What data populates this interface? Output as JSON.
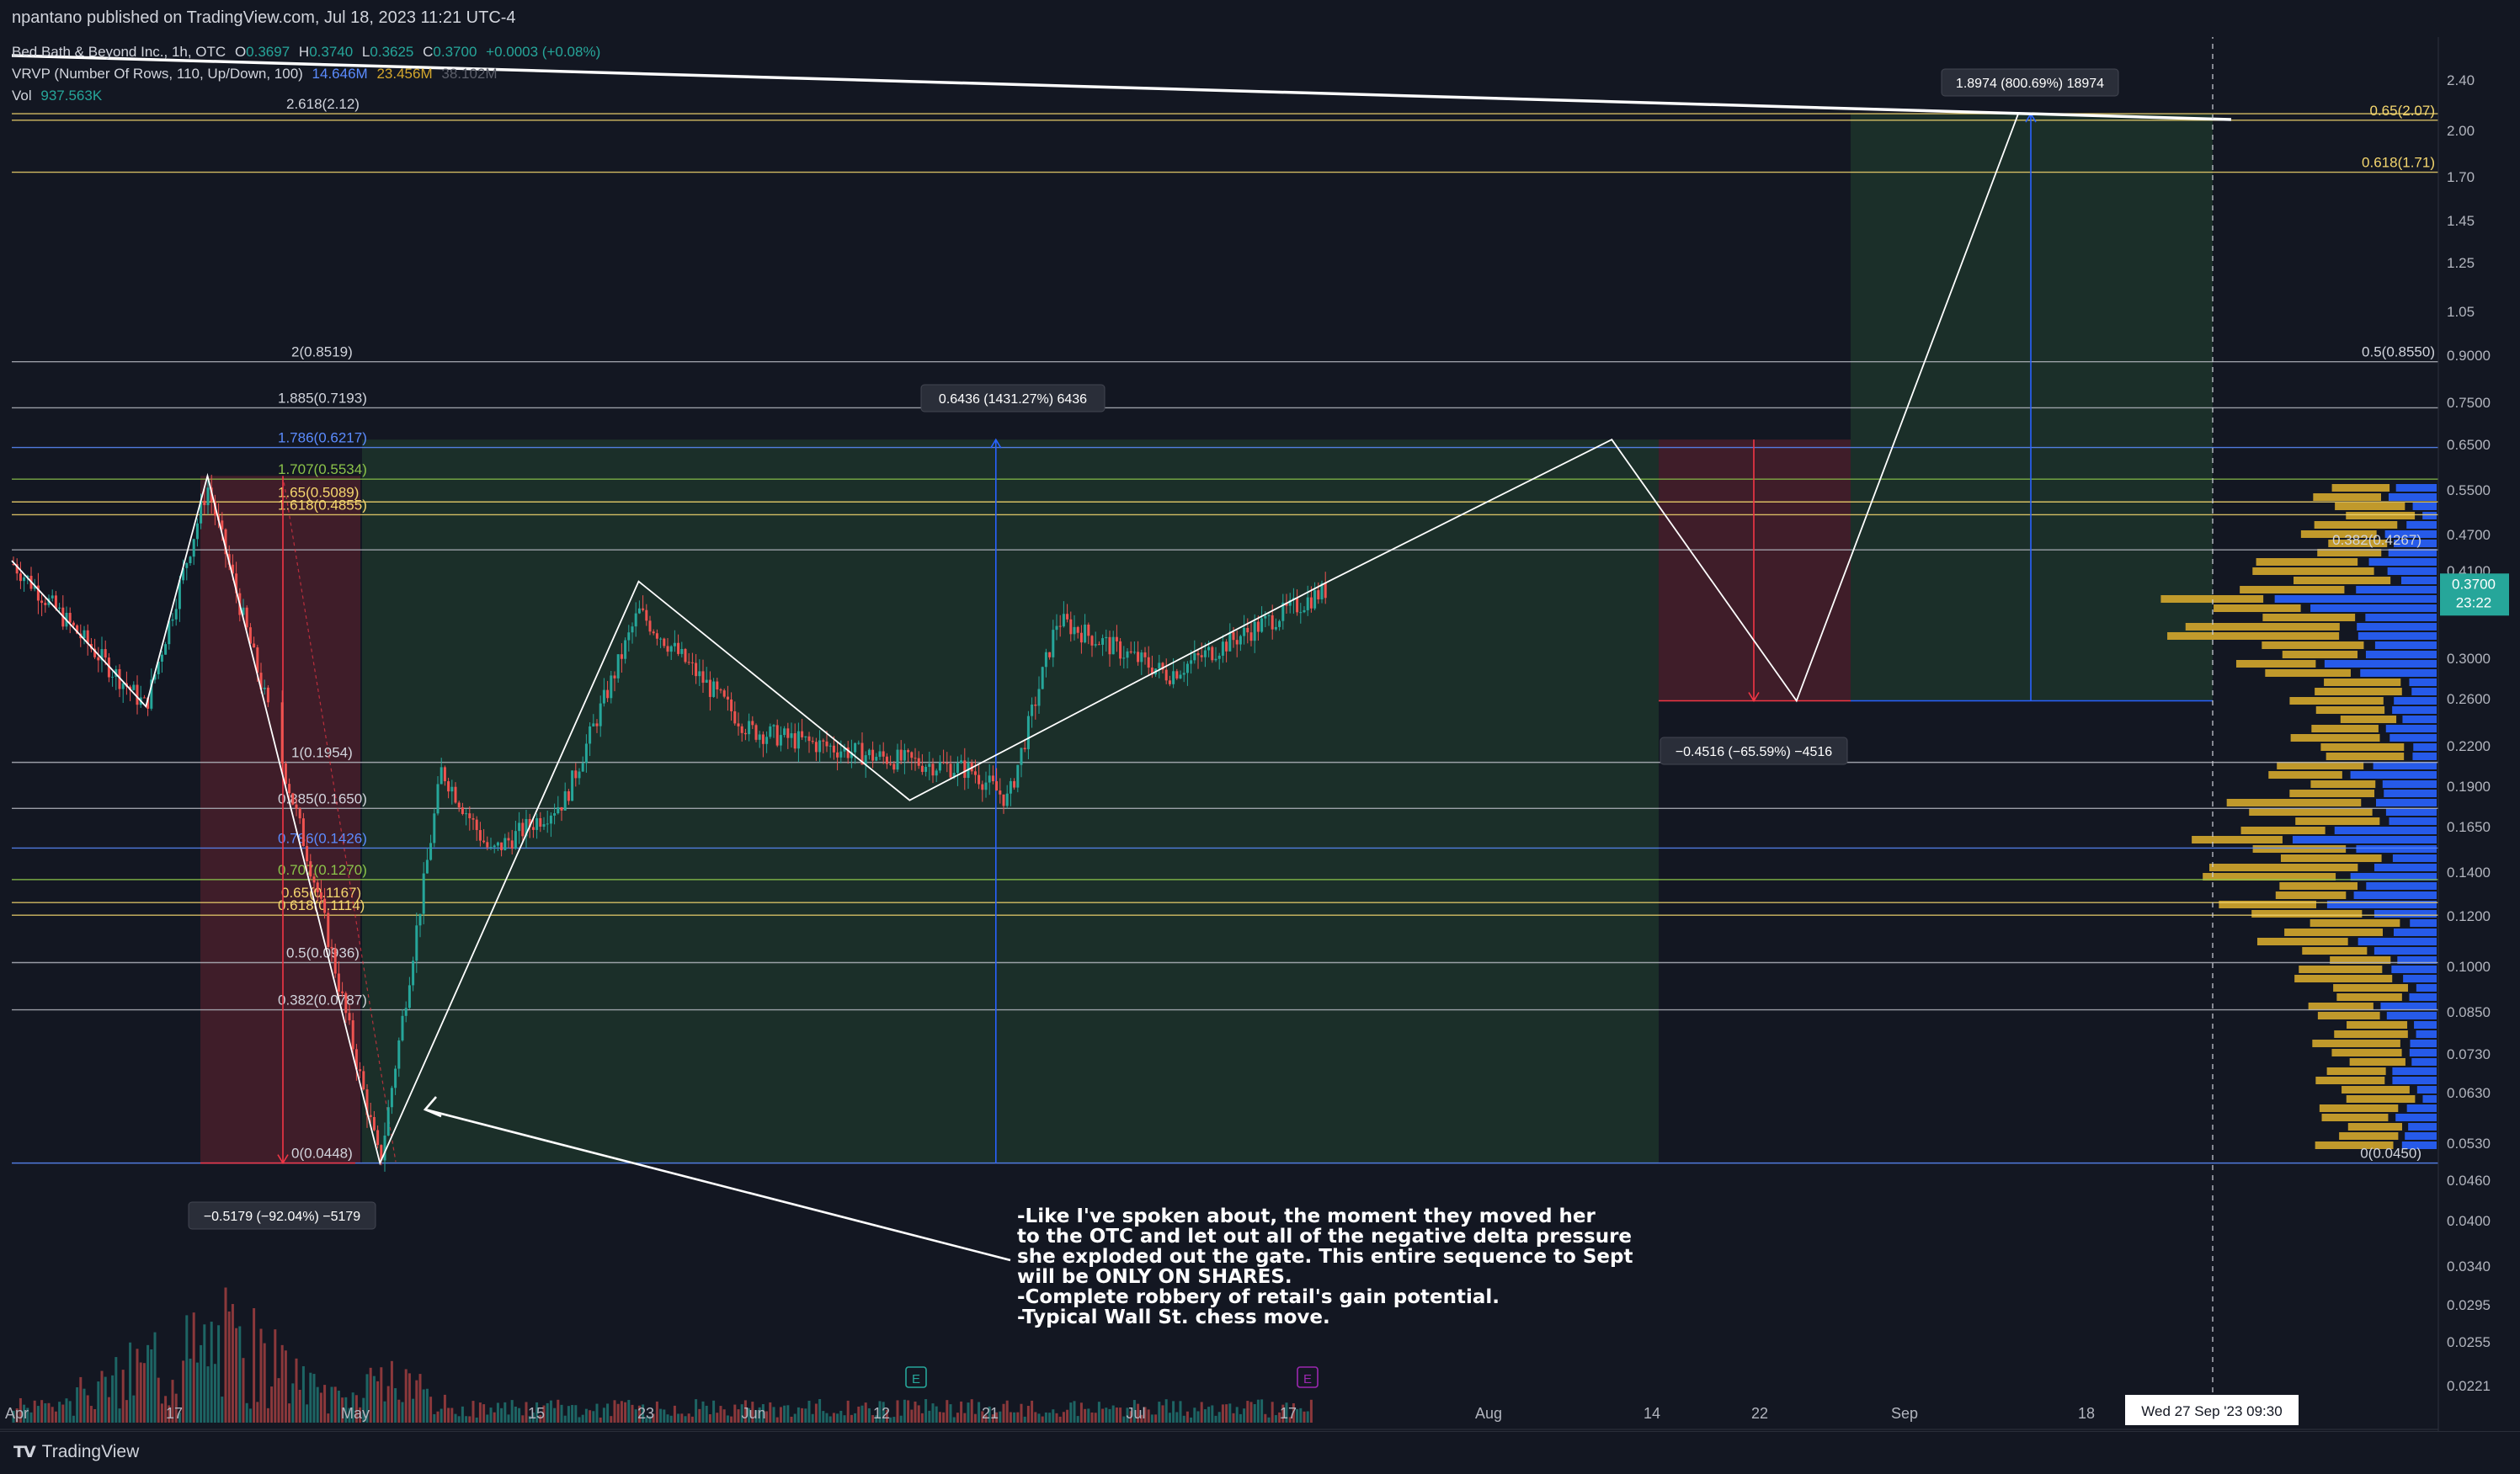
{
  "header": {
    "published": "npantano published on TradingView.com, Jul 18, 2023 11:21 UTC-4"
  },
  "legend": {
    "symbol": "Bed Bath & Beyond Inc., 1h, OTC",
    "ohlc": {
      "o_label": "O",
      "o": "0.3697",
      "h_label": "H",
      "h": "0.3740",
      "l_label": "L",
      "l": "0.3625",
      "c_label": "C",
      "c": "0.3700",
      "change": "+0.0003 (+0.08%)"
    },
    "vrvp_label": "VRVP (Number Of Rows, 110, Up/Down, 100)",
    "vrvp_up": "14.646M",
    "vrvp_down": "23.456M",
    "vrvp_total": "38.102M",
    "vol_label": "Vol",
    "vol_value": "937.563K"
  },
  "colors": {
    "background": "#131722",
    "bull": "#26a69a",
    "bear": "#ef5350",
    "fib": "#f5d76e",
    "vp_up": "#2962ff",
    "vp_down": "#d4a72c",
    "price_tag": "#26a69a"
  },
  "price_axis": {
    "labels": [
      "2.40",
      "2.00",
      "1.70",
      "1.45",
      "1.25",
      "1.05",
      "0.9000",
      "0.7500",
      "0.6500",
      "0.5500",
      "0.4700",
      "0.4100",
      "0.3000",
      "0.2600",
      "0.2200",
      "0.1900",
      "0.1650",
      "0.1400",
      "0.1200",
      "0.1000",
      "0.0850",
      "0.0730",
      "0.0630",
      "0.0530",
      "0.0460",
      "0.0400",
      "0.0340",
      "0.0295",
      "0.0255",
      "0.0221"
    ],
    "current_price": "0.3700",
    "countdown": "23:22"
  },
  "time_axis": {
    "labels": [
      "Apr",
      "17",
      "May",
      "15",
      "23",
      "Jun",
      "12",
      "21",
      "Jul",
      "17",
      "Aug",
      "14",
      "22",
      "Sep",
      "18"
    ],
    "crosshair_label": "Wed 27 Sep '23   09:30"
  },
  "fib_levels": [
    {
      "label": "2.618(2.12)"
    },
    {
      "label": "0.65(2.07)"
    },
    {
      "label": "0.618(1.71)"
    },
    {
      "label": "2(0.8519)"
    },
    {
      "label": "0.5(0.8550)"
    },
    {
      "label": "1.885(0.7193)"
    },
    {
      "label": "1.786(0.6217)"
    },
    {
      "label": "1.707(0.5534)"
    },
    {
      "label": "1.65(0.5089)"
    },
    {
      "label": "1.618(0.4855)"
    },
    {
      "label": "0.382(0.4267)"
    },
    {
      "label": "1(0.1954)"
    },
    {
      "label": "0.885(0.1650)"
    },
    {
      "label": "0.786(0.1426)"
    },
    {
      "label": "0.707(0.1270)"
    },
    {
      "label": "0.65(0.1167)"
    },
    {
      "label": "0.618(0.1114)"
    },
    {
      "label": "0.5(0.0936)"
    },
    {
      "label": "0.382(0.0787)"
    },
    {
      "label": "0(0.0448)"
    },
    {
      "label": "0(0.0450)"
    }
  ],
  "measure_labels": [
    {
      "text": "1.8974 (800.69%) 18974"
    },
    {
      "text": "0.6436 (1431.27%) 6436"
    },
    {
      "text": "−0.4516 (−65.59%) −4516"
    },
    {
      "text": "−0.5179 (−92.04%) −5179"
    }
  ],
  "earnings_markers": [
    "E",
    "E"
  ],
  "annotation": [
    "-Like I've spoken about, the moment they moved her",
    "to the OTC and let out all of the negative delta pressure",
    "she exploded out the gate. This entire sequence to Sept",
    "will be ONLY ON SHARES.",
    "-Complete robbery of retail's gain potential.",
    "-Typical Wall St. chess move."
  ],
  "footer": {
    "brand": "TradingView",
    "logo": "TV"
  },
  "chart_data": {
    "type": "line",
    "title": "Bed Bath & Beyond Inc., 1h, OTC",
    "xlabel": "",
    "ylabel": "",
    "y_scale": "log",
    "ylim": [
      0.0221,
      2.4
    ],
    "price_path": {
      "x": [
        "Apr 3",
        "Apr 14",
        "Apr 19",
        "Apr 28",
        "May 3",
        "Jun 15",
        "Jul 19"
      ],
      "y": [
        0.41,
        0.24,
        0.54,
        0.12,
        0.0448,
        0.3,
        0.37
      ]
    },
    "projection_path": {
      "x": [
        "May 3",
        "May 24",
        "Jun 15",
        "Jul 19",
        "Aug 11",
        "Aug 26",
        "Sep 13"
      ],
      "y": [
        0.0448,
        0.38,
        0.17,
        0.38,
        0.64,
        0.245,
        2.12
      ]
    },
    "grid": false,
    "legend": "top-left"
  }
}
